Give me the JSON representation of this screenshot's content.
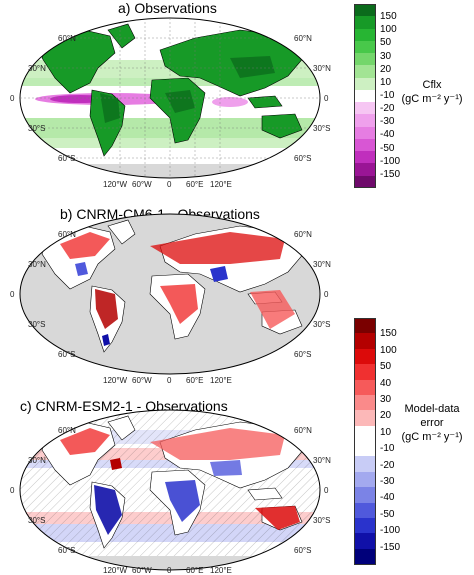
{
  "panels": [
    {
      "title": "a) Observations"
    },
    {
      "title": "b) CNRM-CM6-1  -  Observations"
    },
    {
      "title": "c) CNRM-ESM2-1  -  Observations"
    }
  ],
  "lat_labels": [
    "60°N",
    "30°N",
    "0",
    "30°S",
    "60°S"
  ],
  "lon_labels": [
    "120°W",
    "60°W",
    "0",
    "60°E",
    "120°E"
  ],
  "colorbar_obs": {
    "title_line1": "Cflx",
    "title_line2": "(gC m⁻² y⁻¹)",
    "ticks": [
      "150",
      "100",
      "50",
      "30",
      "20",
      "10",
      "-10",
      "-20",
      "-30",
      "-40",
      "-50",
      "-100",
      "-150"
    ],
    "colors": [
      "#0b6b1c",
      "#179a27",
      "#27b533",
      "#48c84a",
      "#74d66b",
      "#a2e494",
      "#cdf0c2",
      "#ffffff",
      "#f6c6f3",
      "#efa0ec",
      "#e67de2",
      "#d856d4",
      "#c02fbd",
      "#9a1595",
      "#6f0a6b"
    ]
  },
  "colorbar_err": {
    "title_line1": "Model-data",
    "title_line2": "error",
    "title_line3": "(gC m⁻² y⁻¹)",
    "ticks": [
      "150",
      "100",
      "50",
      "40",
      "30",
      "20",
      "10",
      "-10",
      "-20",
      "-30",
      "-40",
      "-50",
      "-100",
      "-150"
    ],
    "colors": [
      "#7a0000",
      "#b40000",
      "#dc0a0a",
      "#f03030",
      "#f65a5a",
      "#fa8a8a",
      "#fcb8b8",
      "#ffffff",
      "#ffffff",
      "#c8ccf6",
      "#a3a9ef",
      "#7b83e6",
      "#5059dc",
      "#2a33cc",
      "#1010a8",
      "#00007a"
    ]
  }
}
